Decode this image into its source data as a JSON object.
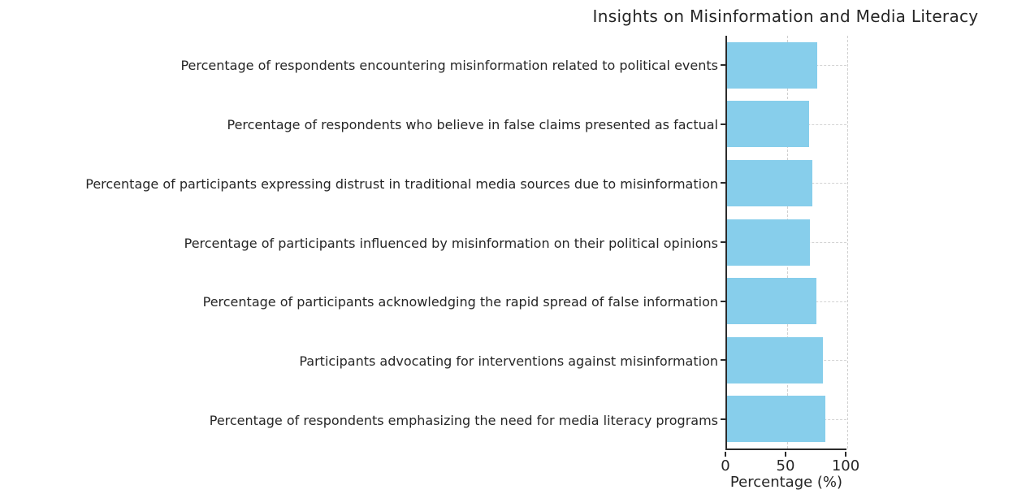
{
  "chart_data": {
    "type": "bar",
    "orientation": "horizontal",
    "title": "Insights on Misinformation and Media Literacy",
    "categories": [
      "Percentage of respondents encountering misinformation related to political events",
      "Percentage of respondents who believe in false claims presented as factual",
      "Percentage of participants expressing distrust in traditional media sources due to misinformation",
      "Percentage of participants influenced by misinformation on their political opinions",
      "Percentage of participants acknowledging the rapid spread of false information",
      "Participants advocating for interventions against misinformation",
      "Percentage of respondents emphasizing the need for media literacy programs"
    ],
    "values": [
      75,
      68,
      71,
      69,
      74,
      80,
      82
    ],
    "xlabel": "Percentage (%)",
    "xticks": [
      0,
      50,
      100
    ],
    "xlim": [
      0,
      100
    ],
    "bar_color": "#87CEEB",
    "grid": "dashed",
    "grid_color": "#d4d4d4",
    "legend": "none",
    "background": "#ffffff"
  }
}
